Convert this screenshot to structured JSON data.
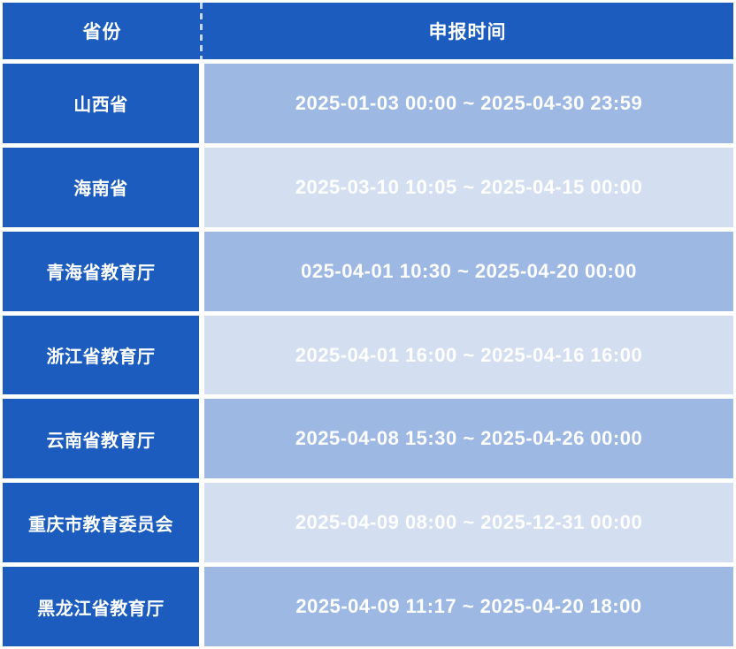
{
  "chart_data": {
    "type": "table",
    "columns": [
      {
        "label": "省份"
      },
      {
        "label": "申报时间"
      }
    ],
    "rows": [
      {
        "province": "山西省",
        "time": "2025-01-03 00:00 ~ 2025-04-30 23:59"
      },
      {
        "province": "海南省",
        "time": "2025-03-10 10:05 ~ 2025-04-15 00:00"
      },
      {
        "province": "青海省教育厅",
        "time": "025-04-01 10:30 ~ 2025-04-20 00:00"
      },
      {
        "province": "浙江省教育厅",
        "time": "2025-04-01 16:00 ~ 2025-04-16 16:00"
      },
      {
        "province": "云南省教育厅",
        "time": "2025-04-08 15:30 ~ 2025-04-26 00:00"
      },
      {
        "province": "重庆市教育委员会",
        "time": "2025-04-09 08:00 ~ 2025-12-31 00:00"
      },
      {
        "province": "黑龙江省教育厅",
        "time": "2025-04-09 11:17 ~ 2025-04-20 18:00"
      }
    ]
  },
  "colors": {
    "header_bg": "#1b5cbe",
    "province_cell_bg": "#1b5cbe",
    "time_cell_medium": "#9db8e3",
    "time_cell_light": "#d3dff1",
    "grid_lines": "#ffffff",
    "text": "#ffffff"
  }
}
